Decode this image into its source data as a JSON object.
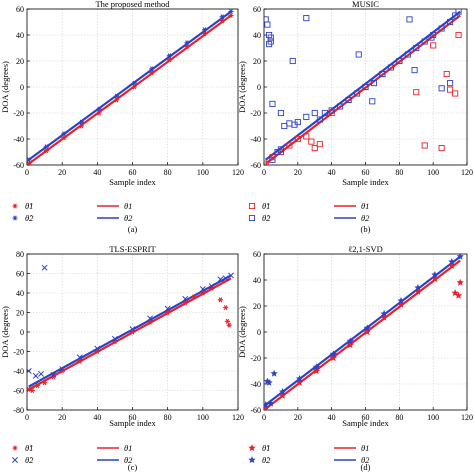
{
  "colors": {
    "theta1": "#e8202a",
    "theta2": "#2d43c6",
    "axis": "#000000",
    "grid": "#d0d0d0"
  },
  "chart_data": [
    {
      "type": "scatter",
      "title": "The proposed method",
      "xlabel": "Sample index",
      "ylabel": "DOA (degrees)",
      "panel_label": "(a)",
      "xlim": [
        0,
        120
      ],
      "ylim": [
        -60,
        60
      ],
      "xticks": [
        0,
        20,
        40,
        60,
        80,
        100,
        120
      ],
      "yticks": [
        -60,
        -40,
        -20,
        0,
        20,
        40,
        60
      ],
      "grid": true,
      "legend_position": "below",
      "markers": [
        "*",
        "*"
      ],
      "legend": {
        "est1": "θ̂1",
        "est2": "θ̂2",
        "true1": "θ1",
        "true2": "θ2"
      },
      "series": [
        {
          "name": "θ1",
          "kind": "line",
          "x": [
            1,
            116
          ],
          "y": [
            -59,
            55
          ]
        },
        {
          "name": "θ2",
          "kind": "line",
          "x": [
            1,
            116
          ],
          "y": [
            -56,
            58
          ]
        },
        {
          "name": "θ̂1",
          "kind": "points",
          "x": [
            1,
            11,
            21,
            31,
            41,
            51,
            61,
            71,
            81,
            91,
            101,
            111,
            116
          ],
          "y": [
            -59,
            -49,
            -39,
            -30,
            -20,
            -10,
            0,
            11,
            21,
            31,
            41,
            51,
            55
          ]
        },
        {
          "name": "θ̂2",
          "kind": "points",
          "x": [
            1,
            11,
            21,
            31,
            41,
            51,
            61,
            71,
            81,
            91,
            101,
            111,
            116
          ],
          "y": [
            -56,
            -46,
            -36,
            -27,
            -17,
            -7,
            3,
            14,
            24,
            34,
            44,
            54,
            58
          ]
        }
      ]
    },
    {
      "type": "scatter",
      "title": "MUSIC",
      "xlabel": "Sample index",
      "ylabel": "DOA (degrees)",
      "panel_label": "(b)",
      "xlim": [
        0,
        120
      ],
      "ylim": [
        -60,
        60
      ],
      "xticks": [
        0,
        20,
        40,
        60,
        80,
        100,
        120
      ],
      "yticks": [
        -60,
        -40,
        -20,
        0,
        20,
        40,
        60
      ],
      "grid": true,
      "legend_position": "below",
      "markers": [
        "square",
        "square"
      ],
      "legend": {
        "est1": "θ̂1",
        "est2": "θ̂2",
        "true1": "θ1",
        "true2": "θ2"
      },
      "series": [
        {
          "name": "θ1",
          "kind": "line",
          "x": [
            1,
            116
          ],
          "y": [
            -59,
            55
          ]
        },
        {
          "name": "θ2",
          "kind": "line",
          "x": [
            1,
            116
          ],
          "y": [
            -56,
            58
          ]
        },
        {
          "name": "θ̂1",
          "kind": "points",
          "x": [
            1,
            5,
            10,
            15,
            20,
            25,
            28,
            30,
            33,
            40,
            50,
            60,
            70,
            80,
            90,
            95,
            100,
            105,
            108,
            110,
            113,
            115
          ],
          "y": [
            -59,
            -54,
            -50,
            -45,
            -40,
            -38,
            -42,
            -47,
            -44,
            -20,
            -10,
            0,
            10,
            20,
            -4,
            -45,
            32,
            -47,
            10,
            -2,
            -5,
            40
          ]
        },
        {
          "name": "θ̂2",
          "kind": "points",
          "x": [
            1,
            2,
            3,
            4,
            5,
            8,
            10,
            12,
            15,
            18,
            20,
            25,
            30,
            36,
            40,
            45,
            50,
            55,
            60,
            65,
            70,
            75,
            80,
            85,
            90,
            95,
            100,
            105,
            110,
            113,
            115
          ],
          "y": [
            52,
            48,
            40,
            35,
            -56,
            -50,
            -48,
            -30,
            -28,
            -29,
            -27,
            -23,
            -20,
            -20,
            -18,
            -15,
            -10,
            -5,
            0,
            3,
            10,
            15,
            20,
            25,
            30,
            35,
            40,
            45,
            50,
            55,
            58
          ]
        },
        {
          "name": "θ̂2 outliers",
          "kind": "points",
          "x": [
            3,
            4,
            5,
            10,
            17,
            25,
            33,
            56,
            64,
            86,
            89,
            99,
            105,
            110
          ],
          "y": [
            33,
            38,
            -13,
            -20,
            20,
            53,
            -25,
            25,
            -11,
            52,
            13,
            38,
            -1,
            3
          ]
        }
      ]
    },
    {
      "type": "scatter",
      "title": "TLS-ESPRIT",
      "xlabel": "Sample index",
      "ylabel": "DOA (degrees)",
      "panel_label": "(c)",
      "xlim": [
        0,
        120
      ],
      "ylim": [
        -80,
        80
      ],
      "xticks": [
        0,
        20,
        40,
        60,
        80,
        100,
        120
      ],
      "yticks": [
        -80,
        -60,
        -40,
        -20,
        0,
        20,
        40,
        60,
        80
      ],
      "grid": true,
      "legend_position": "below",
      "markers": [
        "*",
        "x"
      ],
      "legend": {
        "est1": "θ̂1",
        "est2": "θ̂2",
        "true1": "θ1",
        "true2": "θ2"
      },
      "series": [
        {
          "name": "θ1",
          "kind": "line",
          "x": [
            1,
            116
          ],
          "y": [
            -59,
            55
          ]
        },
        {
          "name": "θ2",
          "kind": "line",
          "x": [
            1,
            116
          ],
          "y": [
            -56,
            58
          ]
        },
        {
          "name": "θ̂1",
          "kind": "points",
          "x": [
            1,
            3,
            6,
            10,
            15,
            20,
            30,
            40,
            50,
            60,
            70,
            80,
            90,
            95,
            100,
            105,
            110,
            113,
            114,
            115
          ],
          "y": [
            -59,
            -60,
            -55,
            -52,
            -46,
            -40,
            -30,
            -20,
            -10,
            0,
            10,
            20,
            30,
            36,
            40,
            45,
            33,
            25,
            11,
            7
          ]
        },
        {
          "name": "θ̂2",
          "kind": "points",
          "x": [
            1,
            5,
            8,
            10,
            15,
            20,
            30,
            40,
            50,
            60,
            70,
            80,
            90,
            100,
            105,
            110,
            113,
            116
          ],
          "y": [
            -40,
            -45,
            -43,
            66,
            -44,
            -38,
            -26,
            -17,
            -7,
            3,
            14,
            24,
            34,
            44,
            47,
            54,
            55,
            58
          ]
        }
      ]
    },
    {
      "type": "scatter",
      "title": "ℓ2,1-SVD",
      "xlabel": "Sample index",
      "ylabel": "DOA (degrees)",
      "panel_label": "(d)",
      "xlim": [
        0,
        120
      ],
      "ylim": [
        -60,
        60
      ],
      "xticks": [
        0,
        20,
        40,
        60,
        80,
        100,
        120
      ],
      "yticks": [
        -60,
        -40,
        -20,
        0,
        20,
        40,
        60
      ],
      "grid": true,
      "legend_position": "below",
      "markers": [
        "star",
        "star"
      ],
      "legend": {
        "est1": "θ̂1",
        "est2": "θ̂2",
        "true1": "θ1",
        "true2": "θ2"
      },
      "series": [
        {
          "name": "θ1",
          "kind": "line",
          "x": [
            1,
            116
          ],
          "y": [
            -59,
            55
          ]
        },
        {
          "name": "θ2",
          "kind": "line",
          "x": [
            1,
            116
          ],
          "y": [
            -56,
            58
          ]
        },
        {
          "name": "θ̂1",
          "kind": "points",
          "x": [
            1,
            11,
            21,
            31,
            41,
            51,
            61,
            71,
            81,
            91,
            101,
            111,
            113,
            115,
            116
          ],
          "y": [
            -59,
            -49,
            -39,
            -30,
            -20,
            -10,
            0,
            11,
            21,
            31,
            41,
            51,
            30,
            28,
            38
          ]
        },
        {
          "name": "θ̂2",
          "kind": "points",
          "x": [
            1,
            2,
            3,
            4,
            6,
            11,
            21,
            31,
            41,
            51,
            61,
            71,
            81,
            91,
            101,
            111,
            116
          ],
          "y": [
            -56,
            -38,
            -39,
            -55,
            -32,
            -46,
            -36,
            -27,
            -17,
            -7,
            3,
            14,
            24,
            34,
            44,
            54,
            58
          ]
        }
      ]
    }
  ]
}
